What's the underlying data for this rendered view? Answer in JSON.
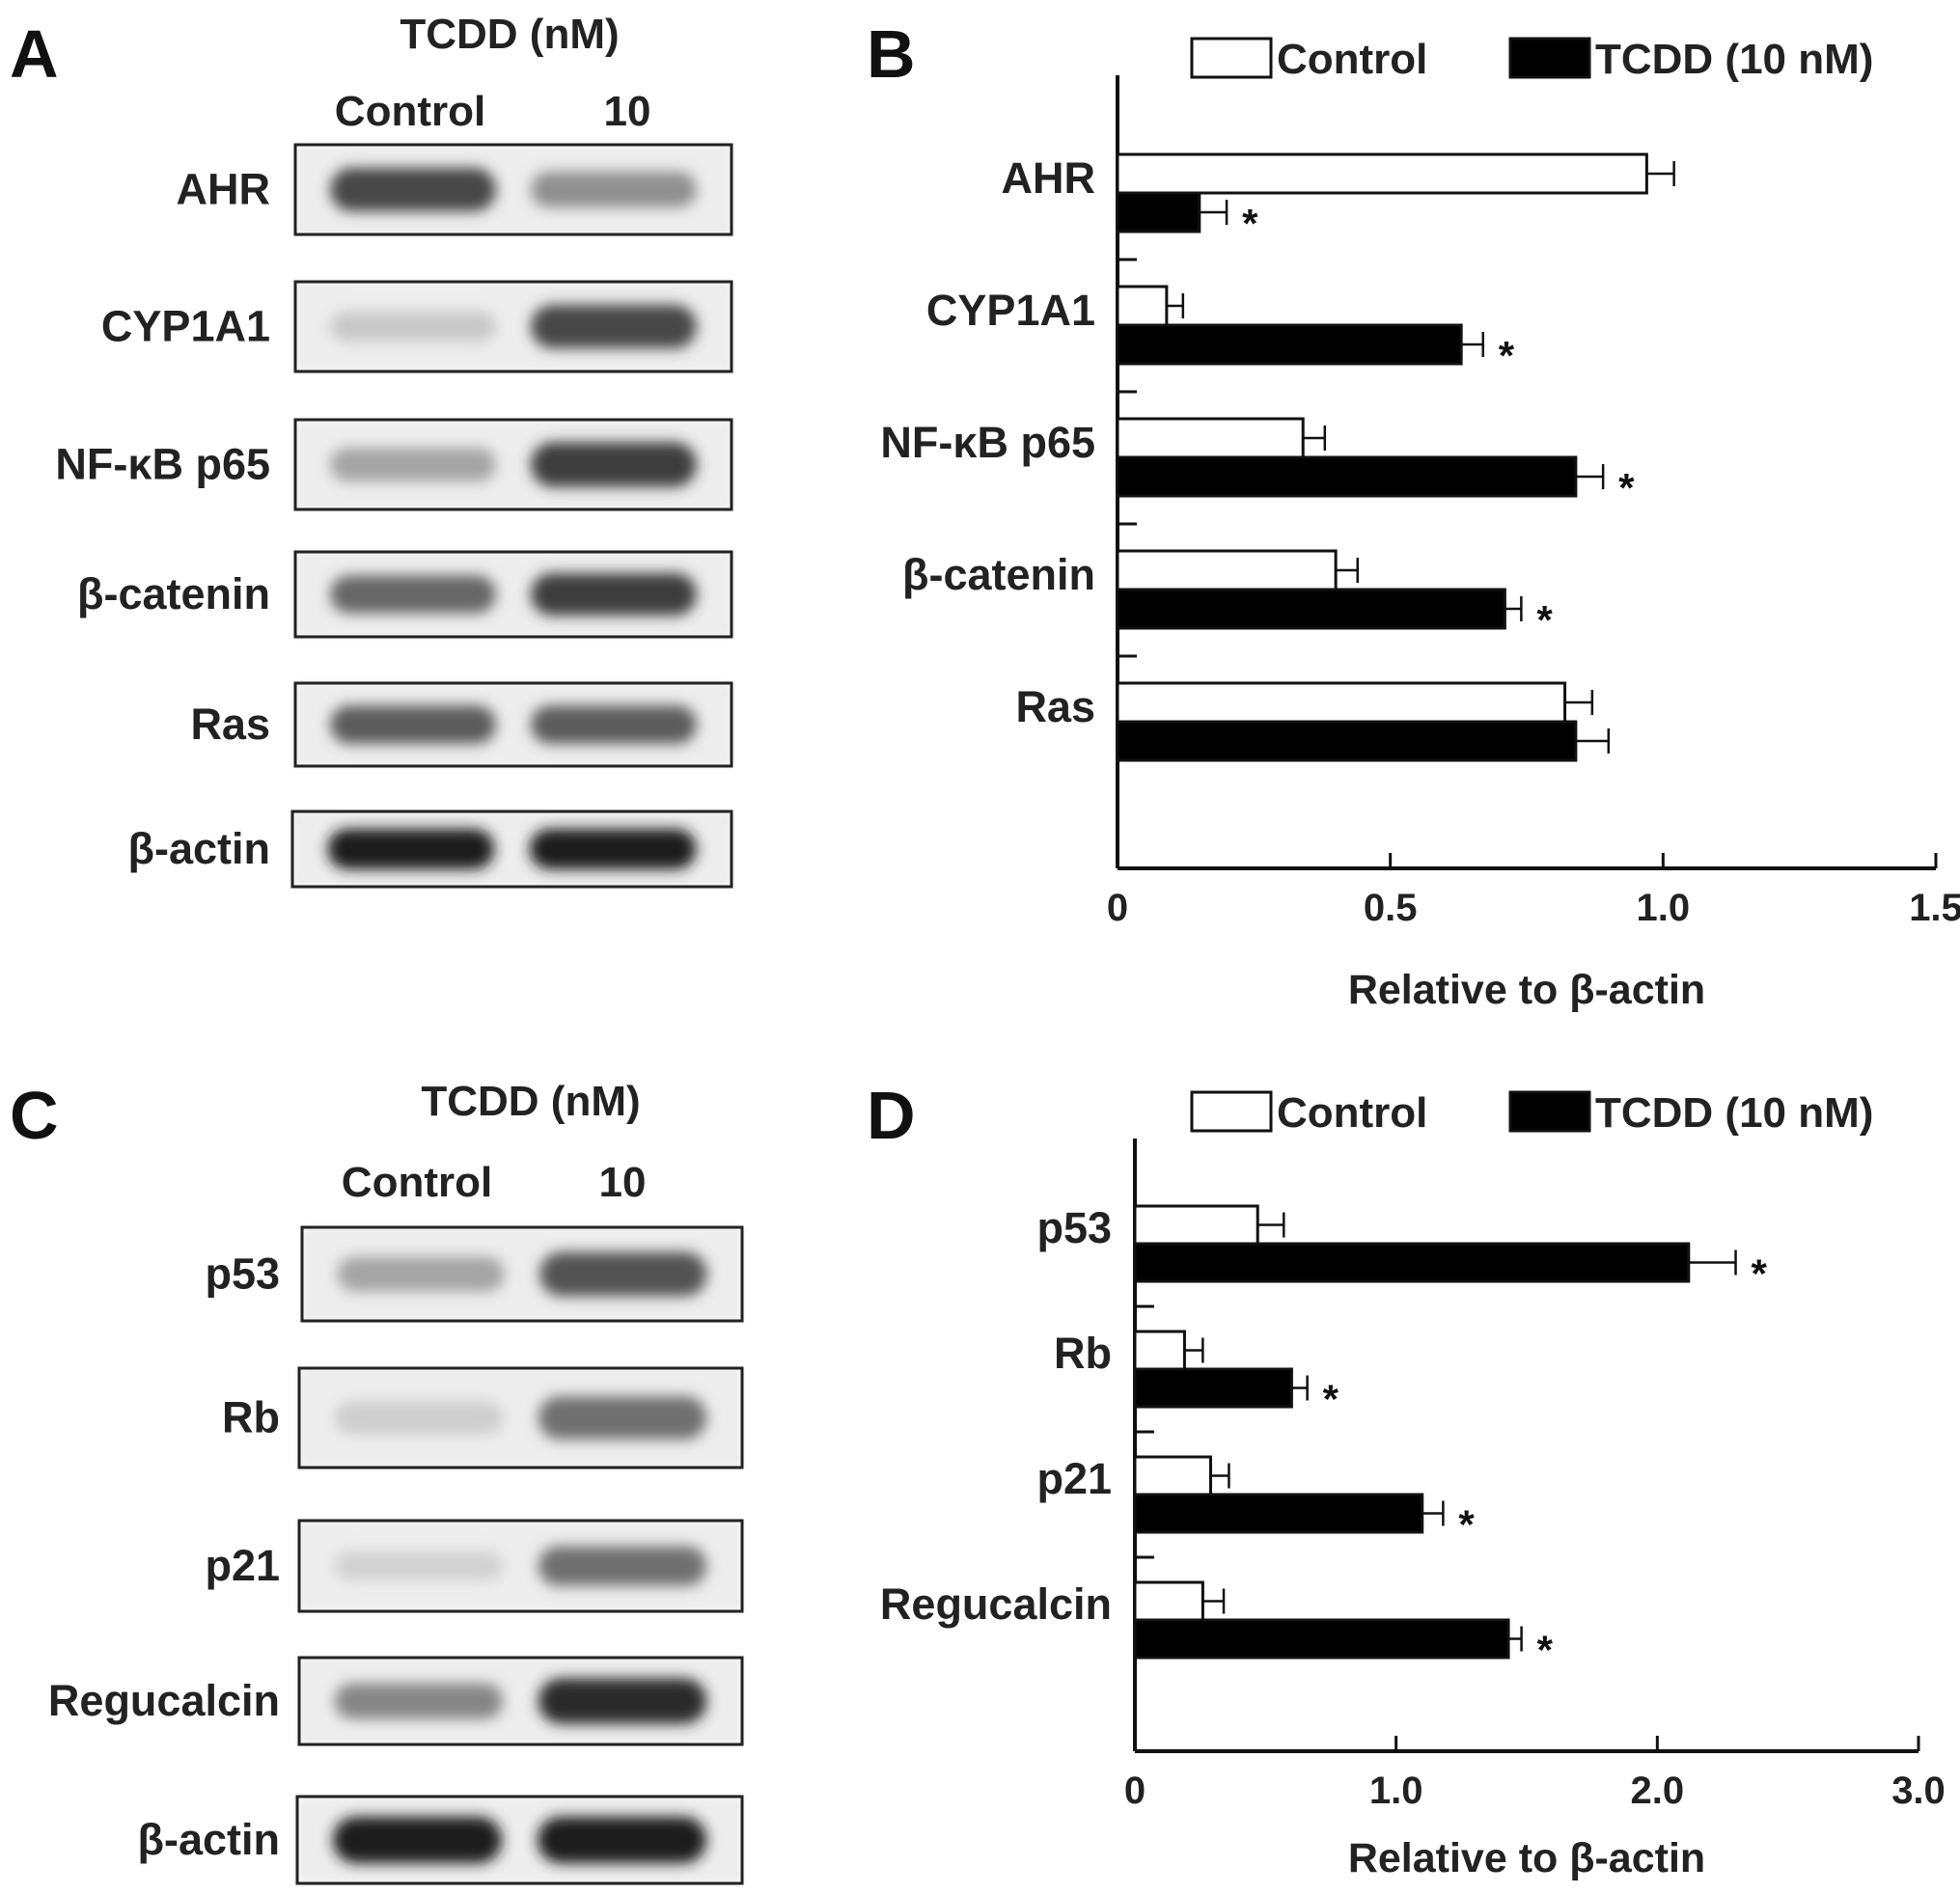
{
  "panels": {
    "A": {
      "letter": "A",
      "treatment_header": "TCDD (nM)",
      "lanes": [
        "Control",
        "10"
      ],
      "blots": [
        {
          "name": "AHR",
          "control": 0.75,
          "treated": 0.4
        },
        {
          "name": "CYP1A1",
          "control": 0.12,
          "treated": 0.75
        },
        {
          "name": "NF-κB p65",
          "control": 0.3,
          "treated": 0.8
        },
        {
          "name": "β-catenin",
          "control": 0.6,
          "treated": 0.8
        },
        {
          "name": "Ras",
          "control": 0.65,
          "treated": 0.65
        },
        {
          "name": "β-actin",
          "control": 0.95,
          "treated": 0.95
        }
      ]
    },
    "C": {
      "letter": "C",
      "treatment_header": "TCDD (nM)",
      "lanes": [
        "Control",
        "10"
      ],
      "blots": [
        {
          "name": "p53",
          "control": 0.3,
          "treated": 0.7
        },
        {
          "name": "Rb",
          "control": 0.1,
          "treated": 0.55
        },
        {
          "name": "p21",
          "control": 0.08,
          "treated": 0.55
        },
        {
          "name": "Regucalcin",
          "control": 0.45,
          "treated": 0.9
        },
        {
          "name": "β-actin",
          "control": 0.95,
          "treated": 0.95
        }
      ]
    }
  },
  "chart_data": [
    {
      "panel": "B",
      "type": "bar",
      "orientation": "horizontal",
      "categories": [
        "AHR",
        "CYP1A1",
        "NF-κB p65",
        "β-catenin",
        "Ras"
      ],
      "series": [
        {
          "name": "Control",
          "values": [
            0.97,
            0.09,
            0.34,
            0.4,
            0.82
          ],
          "errors": [
            0.05,
            0.03,
            0.04,
            0.04,
            0.05
          ],
          "fill": "#ffffff"
        },
        {
          "name": "TCDD (10 nM)",
          "values": [
            0.15,
            0.63,
            0.84,
            0.71,
            0.84
          ],
          "errors": [
            0.05,
            0.04,
            0.05,
            0.03,
            0.06
          ],
          "fill": "#000000"
        }
      ],
      "significance": [
        [
          "",
          "*"
        ],
        [
          "",
          "*"
        ],
        [
          "",
          "*"
        ],
        [
          "",
          "*"
        ],
        [
          "",
          ""
        ]
      ],
      "xlabel": "Relative to β-actin",
      "xlim": [
        0,
        1.5
      ],
      "xticks": [
        "0",
        "0.5",
        "1.0",
        "1.5"
      ],
      "grid": false,
      "legend_position": "top"
    },
    {
      "panel": "D",
      "type": "bar",
      "orientation": "horizontal",
      "categories": [
        "p53",
        "Rb",
        "p21",
        "Regucalcin"
      ],
      "series": [
        {
          "name": "Control",
          "values": [
            0.47,
            0.19,
            0.29,
            0.26
          ],
          "errors": [
            0.1,
            0.07,
            0.07,
            0.08
          ],
          "fill": "#ffffff"
        },
        {
          "name": "TCDD (10 nM)",
          "values": [
            2.12,
            0.6,
            1.1,
            1.43
          ],
          "errors": [
            0.18,
            0.06,
            0.08,
            0.05
          ],
          "fill": "#000000"
        }
      ],
      "significance": [
        [
          "",
          "*"
        ],
        [
          "",
          "*"
        ],
        [
          "",
          "*"
        ],
        [
          "",
          "*"
        ]
      ],
      "xlabel": "Relative to β-actin",
      "xlim": [
        0,
        3.0
      ],
      "xticks": [
        "0",
        "1.0",
        "2.0",
        "3.0"
      ],
      "grid": false,
      "legend_position": "top"
    }
  ]
}
